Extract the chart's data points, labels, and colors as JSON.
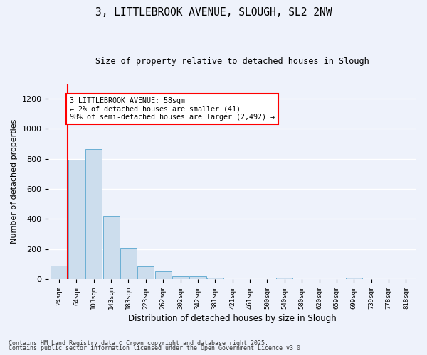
{
  "title1": "3, LITTLEBROOK AVENUE, SLOUGH, SL2 2NW",
  "title2": "Size of property relative to detached houses in Slough",
  "xlabel": "Distribution of detached houses by size in Slough",
  "ylabel": "Number of detached properties",
  "bins": [
    "24sqm",
    "64sqm",
    "103sqm",
    "143sqm",
    "183sqm",
    "223sqm",
    "262sqm",
    "302sqm",
    "342sqm",
    "381sqm",
    "421sqm",
    "461sqm",
    "500sqm",
    "540sqm",
    "580sqm",
    "620sqm",
    "659sqm",
    "699sqm",
    "739sqm",
    "778sqm",
    "818sqm"
  ],
  "values": [
    88,
    793,
    864,
    420,
    209,
    84,
    50,
    18,
    18,
    12,
    0,
    0,
    0,
    8,
    0,
    0,
    0,
    12,
    0,
    0,
    0
  ],
  "bar_color": "#ccdded",
  "bar_edge_color": "#6aafd4",
  "red_line_x": 0.5,
  "annotation_text": "3 LITTLEBROOK AVENUE: 58sqm\n← 2% of detached houses are smaller (41)\n98% of semi-detached houses are larger (2,492) →",
  "annotation_box_color": "white",
  "annotation_box_edge_color": "red",
  "red_line_color": "red",
  "footer1": "Contains HM Land Registry data © Crown copyright and database right 2025.",
  "footer2": "Contains public sector information licensed under the Open Government Licence v3.0.",
  "bg_color": "#eef2fb",
  "grid_color": "white",
  "ylim": [
    0,
    1300
  ],
  "yticks": [
    0,
    200,
    400,
    600,
    800,
    1000,
    1200
  ]
}
